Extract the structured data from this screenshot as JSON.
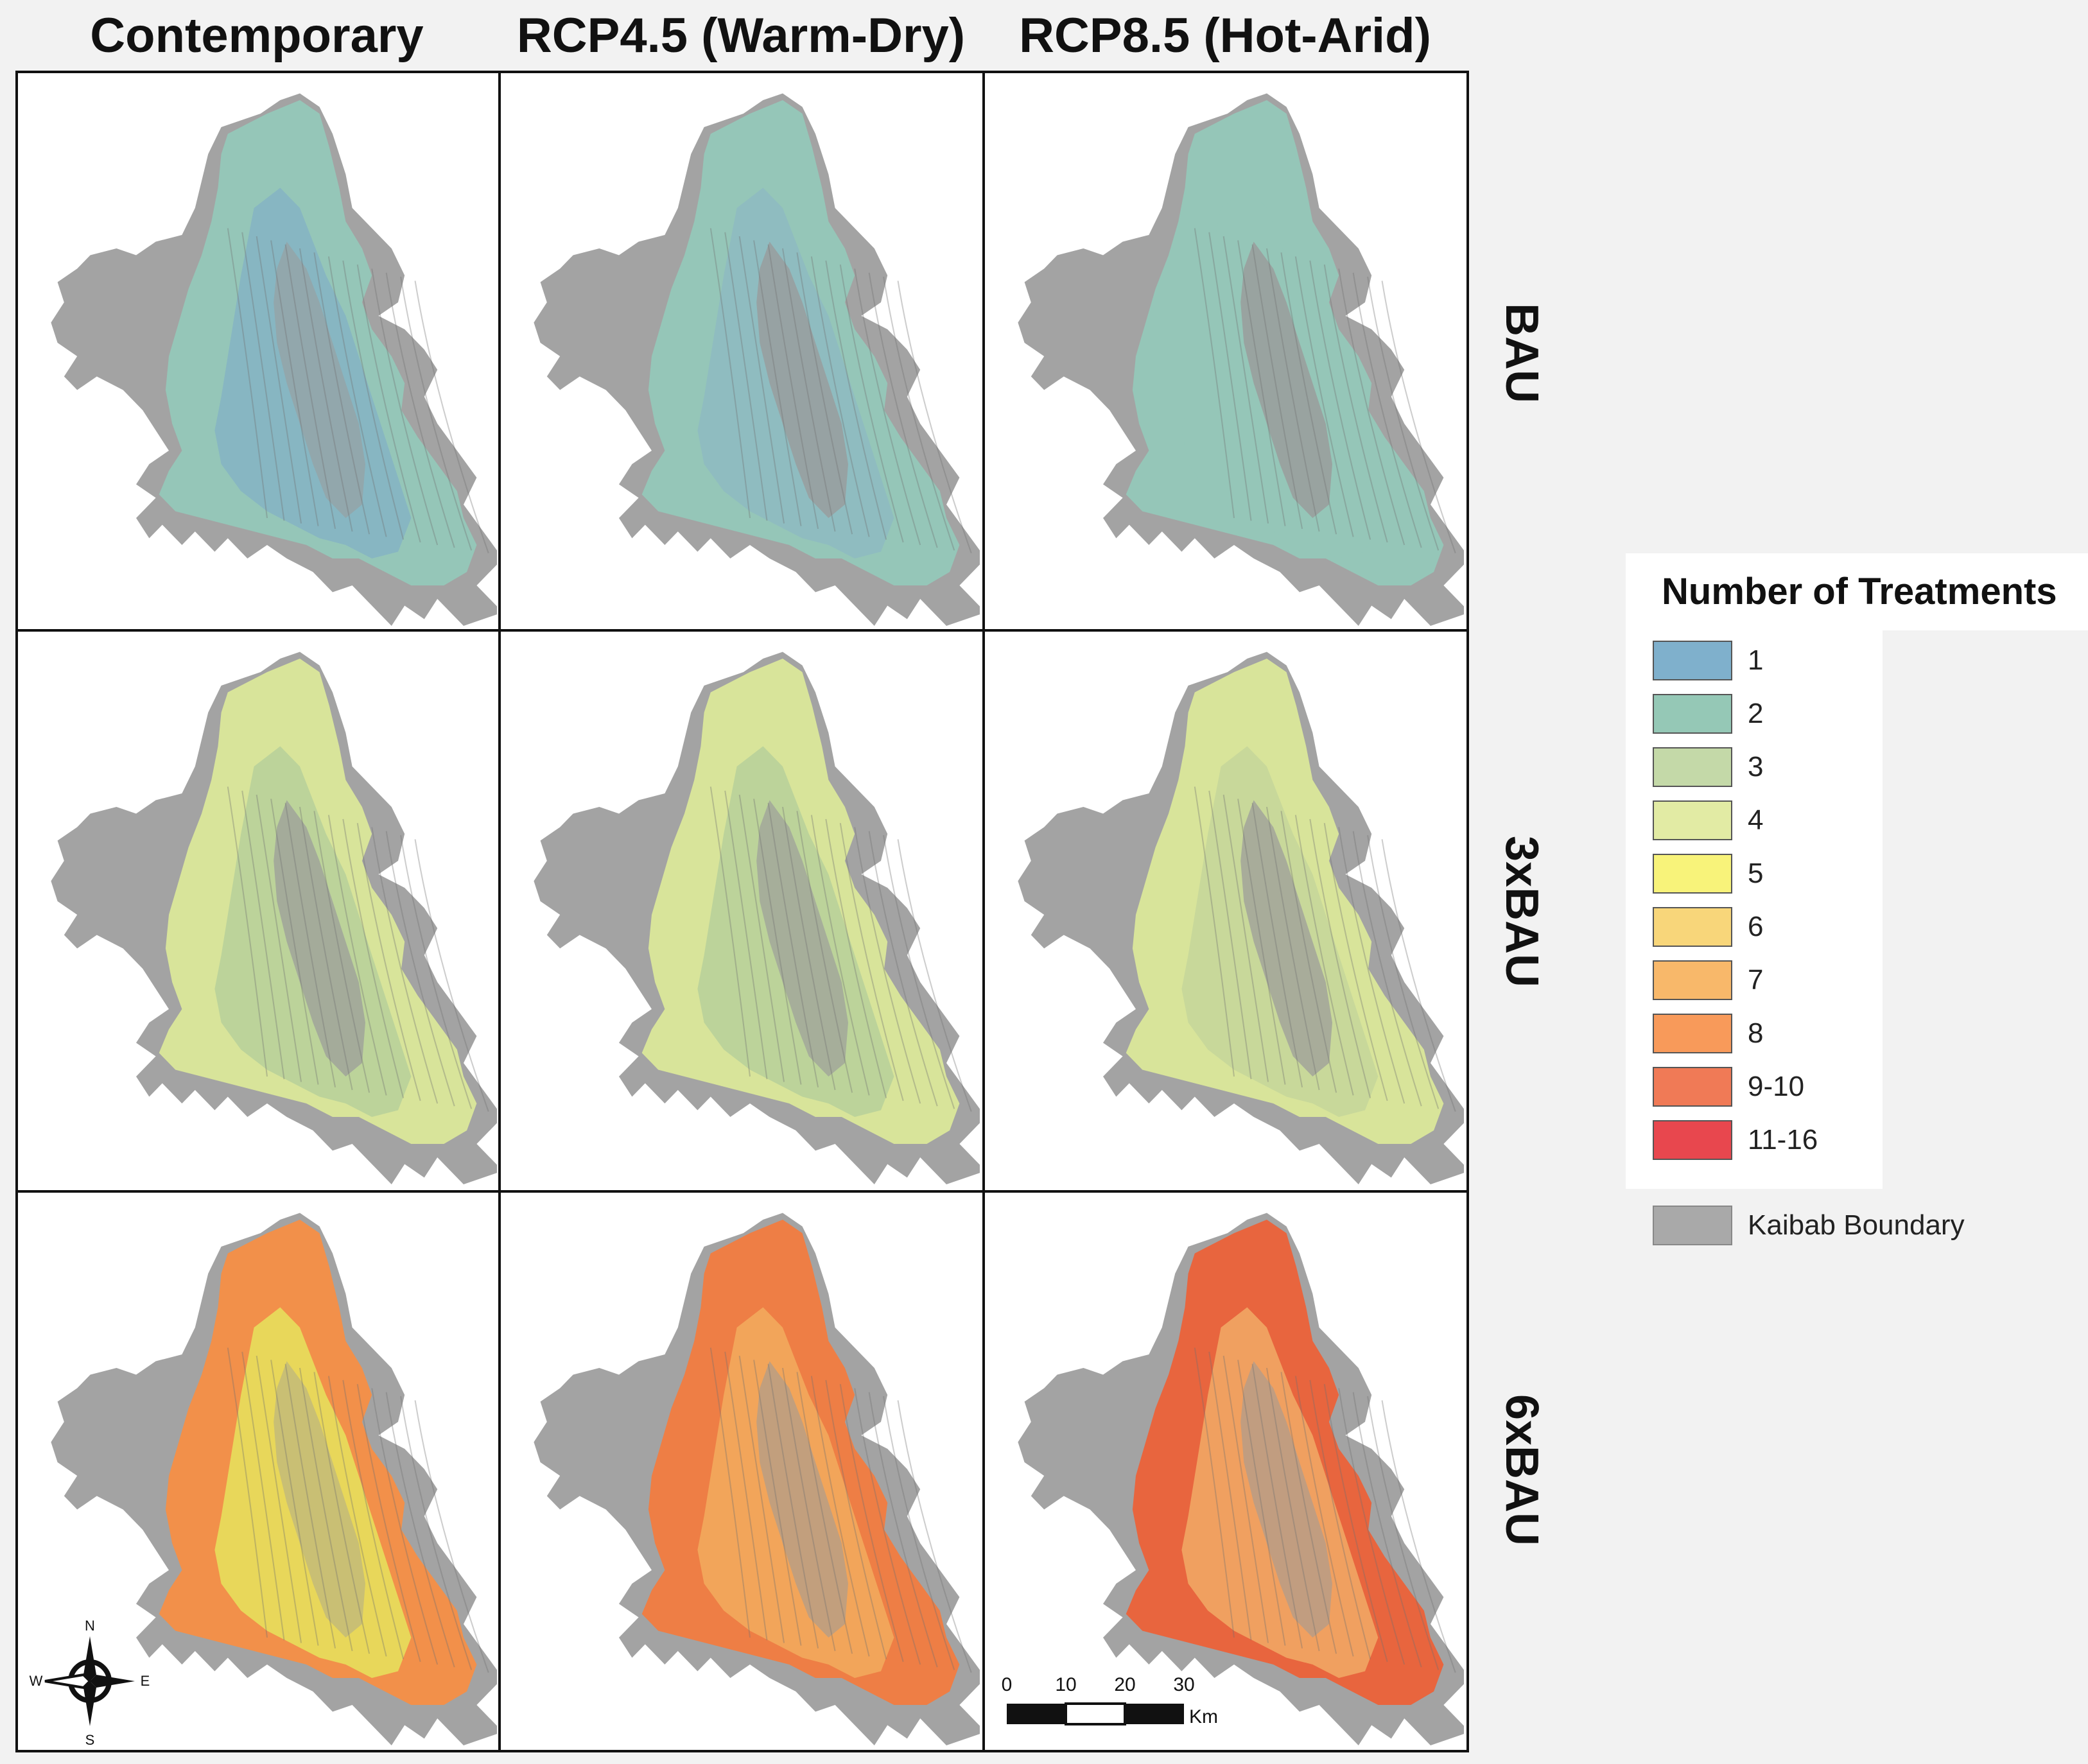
{
  "columns": [
    {
      "title": "Contemporary"
    },
    {
      "title": "RCP4.5 (Warm-Dry)"
    },
    {
      "title": "RCP8.5 (Hot-Arid)"
    }
  ],
  "rows": [
    {
      "label": "BAU"
    },
    {
      "label": "3xBAU"
    },
    {
      "label": "6xBAU"
    }
  ],
  "boundary_color": "#a3a3a3",
  "panels": [
    {
      "outer": "#95c6b8",
      "inner": "#87b6c2",
      "inner_grey": 0.55
    },
    {
      "outer": "#95c6b8",
      "inner": "#8fbcc0",
      "inner_grey": 0.75
    },
    {
      "outer": "#95c6b8",
      "inner": "#95c6b8",
      "inner_grey": 0.8
    },
    {
      "outer": "#d8e49a",
      "inner": "#bcd39a",
      "inner_grey": 0.7
    },
    {
      "outer": "#d8e49a",
      "inner": "#bcd39a",
      "inner_grey": 0.65
    },
    {
      "outer": "#d8e49a",
      "inner": "#c8d89a",
      "inner_grey": 0.7
    },
    {
      "outer": "#f2904a",
      "inner": "#e8d75a",
      "inner_grey": 0.4
    },
    {
      "outer": "#ee7e45",
      "inner": "#f2a55a",
      "inner_grey": 0.55
    },
    {
      "outer": "#e8653e",
      "inner": "#f0a060",
      "inner_grey": 0.55
    }
  ],
  "legend": {
    "title": "Number of Treatments",
    "items": [
      {
        "label": "1",
        "color": "#7fb0cc"
      },
      {
        "label": "2",
        "color": "#95c8b6"
      },
      {
        "label": "3",
        "color": "#c4d9a8"
      },
      {
        "label": "4",
        "color": "#e2eba4"
      },
      {
        "label": "5",
        "color": "#f8f37a"
      },
      {
        "label": "6",
        "color": "#f8d67a"
      },
      {
        "label": "7",
        "color": "#f8b86a"
      },
      {
        "label": "8",
        "color": "#f89a5a"
      },
      {
        "label": "9-10",
        "color": "#f07a56"
      },
      {
        "label": "11-16",
        "color": "#e8474e"
      }
    ],
    "boundary_label": "Kaibab Boundary"
  },
  "scalebar": {
    "ticks": [
      "0",
      "10",
      "20",
      "30"
    ],
    "unit": "Km"
  },
  "compass": {
    "n": "N",
    "s": "S",
    "e": "E",
    "w": "W"
  }
}
